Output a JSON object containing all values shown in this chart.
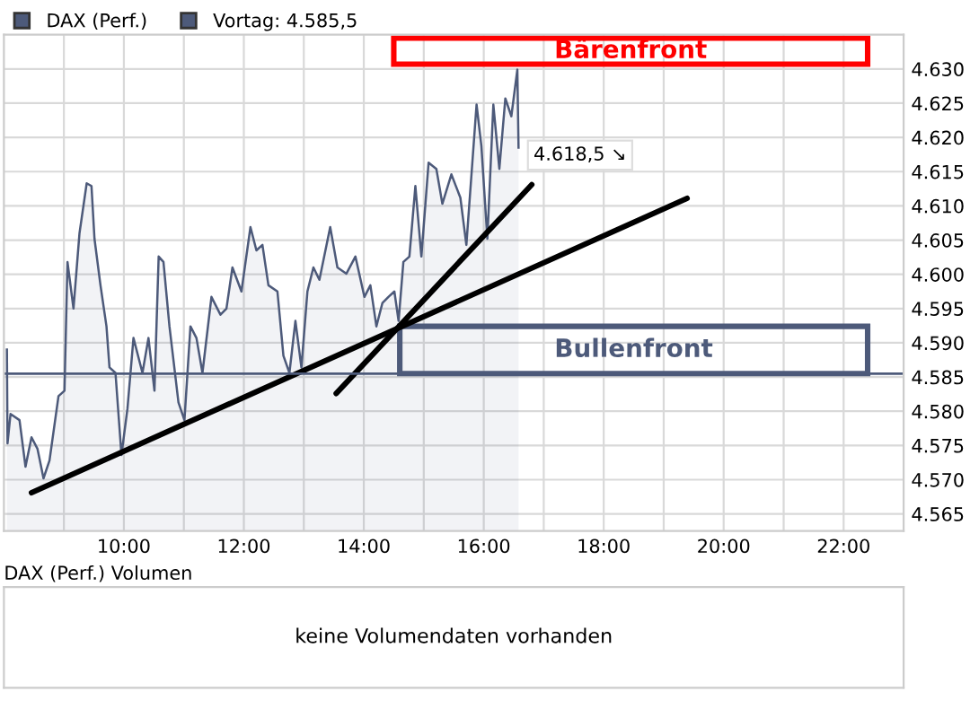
{
  "chart_data": [
    {
      "type": "area",
      "legend": "top left",
      "grid": true,
      "marker": "none",
      "line_style": "solid",
      "xlim": [
        8,
        23
      ],
      "ylim": [
        4562.5,
        4635
      ],
      "xticks": [
        {
          "value": 9,
          "label": null
        },
        {
          "value": 10,
          "label": "10:00"
        },
        {
          "value": 11,
          "label": null
        },
        {
          "value": 12,
          "label": "12:00"
        },
        {
          "value": 13,
          "label": null
        },
        {
          "value": 14,
          "label": "14:00"
        },
        {
          "value": 15,
          "label": null
        },
        {
          "value": 16,
          "label": "16:00"
        },
        {
          "value": 17,
          "label": null
        },
        {
          "value": 18,
          "label": "18:00"
        },
        {
          "value": 19,
          "label": null
        },
        {
          "value": 20,
          "label": "20:00"
        },
        {
          "value": 21,
          "label": null
        },
        {
          "value": 22,
          "label": "22:00"
        }
      ],
      "yticks": [
        {
          "value": 4565,
          "label": "4.565"
        },
        {
          "value": 4570,
          "label": "4.570"
        },
        {
          "value": 4575,
          "label": "4.575"
        },
        {
          "value": 4580,
          "label": "4.580"
        },
        {
          "value": 4585,
          "label": "4.585"
        },
        {
          "value": 4590,
          "label": "4.590"
        },
        {
          "value": 4595,
          "label": "4.595"
        },
        {
          "value": 4600,
          "label": "4.600"
        },
        {
          "value": 4605,
          "label": "4.605"
        },
        {
          "value": 4610,
          "label": "4.610"
        },
        {
          "value": 4615,
          "label": "4.615"
        },
        {
          "value": 4620,
          "label": "4.620"
        },
        {
          "value": 4625,
          "label": "4.625"
        },
        {
          "value": 4630,
          "label": "4.630"
        }
      ],
      "series": [
        {
          "name": "DAX (Perf.)",
          "color": "#4d5a7a",
          "type": "area",
          "x": [
            8.05,
            8.06,
            8.11,
            8.26,
            8.36,
            8.46,
            8.56,
            8.66,
            8.76,
            8.91,
            9.01,
            9.06,
            9.16,
            9.26,
            9.38,
            9.46,
            9.51,
            9.61,
            9.71,
            9.76,
            9.86,
            9.96,
            10.06,
            10.16,
            10.31,
            10.41,
            10.51,
            10.58,
            10.66,
            10.76,
            10.91,
            11.01,
            11.11,
            11.21,
            11.31,
            11.46,
            11.61,
            11.71,
            11.81,
            11.96,
            12.11,
            12.21,
            12.31,
            12.41,
            12.56,
            12.66,
            12.76,
            12.86,
            12.96,
            13.06,
            13.16,
            13.26,
            13.44,
            13.56,
            13.71,
            13.86,
            14.01,
            14.11,
            14.21,
            14.31,
            14.41,
            14.51,
            14.58,
            14.66,
            14.76,
            14.86,
            14.96,
            15.08,
            15.21,
            15.31,
            15.46,
            15.61,
            15.71,
            15.88,
            15.96,
            16.06,
            16.16,
            16.26,
            16.36,
            16.46,
            16.56,
            16.58
          ],
          "values": [
            4589.0,
            4575.3,
            4579.6,
            4578.7,
            4571.9,
            4576.2,
            4574.5,
            4570.2,
            4572.8,
            4582.2,
            4583.0,
            4601.8,
            4595.0,
            4606.0,
            4613.3,
            4612.9,
            4605.2,
            4598.4,
            4592.4,
            4586.4,
            4585.6,
            4573.6,
            4580.4,
            4590.7,
            4585.6,
            4590.7,
            4583.0,
            4602.6,
            4601.8,
            4592.4,
            4581.3,
            4578.7,
            4592.4,
            4590.7,
            4585.6,
            4596.7,
            4594.1,
            4595.0,
            4601.0,
            4597.5,
            4606.9,
            4603.5,
            4604.3,
            4598.4,
            4597.5,
            4588.1,
            4585.6,
            4593.2,
            4586.4,
            4597.5,
            4601.0,
            4599.2,
            4606.9,
            4601.0,
            4600.1,
            4602.6,
            4596.7,
            4598.4,
            4592.4,
            4595.8,
            4596.7,
            4597.5,
            4593.2,
            4601.8,
            4602.6,
            4612.9,
            4602.6,
            4616.3,
            4615.4,
            4610.3,
            4614.6,
            4611.2,
            4604.3,
            4624.8,
            4618.8,
            4605.2,
            4624.8,
            4615.4,
            4625.7,
            4623.1,
            4629.9,
            4618.5
          ]
        },
        {
          "color": "#000000",
          "type": "line",
          "x": [
            8.46,
            19.39
          ],
          "values": [
            4568.1,
            4611.1
          ]
        },
        {
          "color": "#000000",
          "type": "line",
          "x": [
            13.54,
            16.8
          ],
          "values": [
            4582.6,
            4613.1
          ]
        }
      ],
      "ref_lines": [
        {
          "axis": "y",
          "value": 4585.5,
          "label": "Vortag: 4.585,5",
          "color": "#4d5a7a"
        }
      ],
      "annotations": [
        {
          "text": "4.618,5 ↘",
          "x": 16.58,
          "y": 4618.5
        },
        "Bärenfront",
        "Bullenfront"
      ]
    },
    {
      "type": "other",
      "title": "DAX (Perf.) Volumen",
      "annotations": [
        "keine Volumendaten vorhanden"
      ]
    }
  ]
}
